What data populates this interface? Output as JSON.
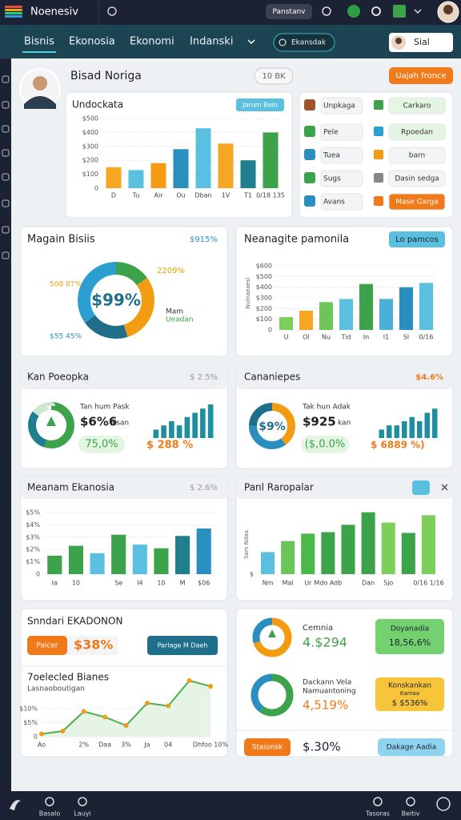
{
  "top_bar": {
    "title": "Noenesiv",
    "button": "Panstanv"
  },
  "nav": {
    "tabs": [
      "Bisnis",
      "Ekonosia",
      "Ekonomi",
      "Indanski"
    ],
    "search": "Ekansdak",
    "user": "Sial"
  },
  "header": {
    "name": "Bisad Noriga",
    "badge": "10 BK",
    "button": "Uajah fronce"
  },
  "card_undockata": {
    "title": "Undockata",
    "button": "Jarum Bain"
  },
  "menu": {
    "left": [
      "Unpkaga",
      "Pele",
      "Tuea",
      "Sugs",
      "Avans"
    ],
    "right": [
      "Carkaro",
      "Rpoedan",
      "barn",
      "Dasin sedga",
      "Mase Gxrga"
    ]
  },
  "card_magain": {
    "title": "Magain Bisiis",
    "stat": "$915%",
    "center": "$99%",
    "label_top": "2209%",
    "label_left": "508 87%",
    "label_bottom": "$55 45%",
    "legend_1": "Mam",
    "legend_2": "Ueadan"
  },
  "card_neanagite": {
    "title": "Neanagite pamonila",
    "button": "Lo pamcos",
    "axis_label": "Nulnaeaesi"
  },
  "card_kan": {
    "title": "Kan Poeopka",
    "stat": "$ 2.5%",
    "label": "Tan hum Pask",
    "value": "$6%6",
    "unit": "ksan",
    "pill": "75,0%",
    "change": "$ 288 %"
  },
  "card_can": {
    "title": "Cananiepes",
    "stat": "$4.6%",
    "center": "$9%",
    "label": "Tak hun Adak",
    "value": "$925",
    "unit": "kan",
    "pill": "($,0.0%",
    "change": "$ 6889 %)"
  },
  "card_meanam": {
    "title": "Meanam Ekanosia",
    "stat": "$ 2.6%"
  },
  "card_panl": {
    "title": "Panl Raropalar",
    "axis_label": "Sam Ndaa"
  },
  "card_snndari": {
    "title": "Snndari EKADONON",
    "pill": "Paicer",
    "value": "$38%",
    "button": "Parlage M Daeh",
    "subtitle": "7oelecled Bianes",
    "caption": "Lasnaoboutigan"
  },
  "card_cemnia": {
    "title": "Cemnia",
    "value": "4.$294",
    "box_title": "Doyanadia",
    "box_value": "18,56,6%",
    "title_2a": "Dackann Vela",
    "title_2b": "Namuantoning",
    "value_2": "4,519%",
    "box2_title": "Konskankan",
    "box2_sub": "Kamaa",
    "box2_value": "$ $536%",
    "pill": "Staionsk",
    "footer_value": "$.30%",
    "button": "Dakage Aadia"
  },
  "bottom_bar": {
    "items": [
      "Basalo",
      "Lauyi",
      "Tasoras",
      "Beitiv"
    ]
  },
  "chart_data": [
    {
      "type": "bar",
      "categories": [
        "D",
        "Tu",
        "Air",
        "Ou",
        "Dban",
        "1V",
        "T1",
        "0/18 135"
      ],
      "values": [
        150,
        130,
        180,
        280,
        430,
        320,
        200,
        400
      ],
      "colors": [
        "#f5a623",
        "#5bc0e0",
        "#f39c12",
        "#2a8fbf",
        "#5bc0e0",
        "#f5a623",
        "#1f7f8f",
        "#3ca34a"
      ],
      "ylim": [
        0,
        500
      ],
      "yticks": [
        0,
        {
          "value": 100,
          "label": "$100"
        },
        {
          "value": 200,
          "label": "$200"
        },
        {
          "value": 300,
          "label": "$300"
        },
        {
          "value": 400,
          "label": "$400"
        },
        {
          "value": 500,
          "label": "$500"
        }
      ]
    },
    {
      "type": "donut",
      "values": [
        15,
        30,
        20,
        35
      ],
      "colors": [
        "#3ca34a",
        "#f39c12",
        "#1f6f8b",
        "#2a9fd0"
      ]
    },
    {
      "type": "bar",
      "categories": [
        "U",
        "Ol",
        "Nu",
        "Tid",
        "In",
        "I1",
        "Sl",
        "0/16"
      ],
      "values": [
        120,
        180,
        260,
        290,
        430,
        290,
        400,
        440
      ],
      "colors": [
        "#7bcf5a",
        "#f5a623",
        "#6cc45a",
        "#5bc0e0",
        "#3ca34a",
        "#4bb0d8",
        "#2a8fbf",
        "#5bc0e0"
      ],
      "ylim": [
        0,
        600
      ],
      "yticks": [
        0,
        {
          "value": 100,
          "label": "$100"
        },
        {
          "value": 200,
          "label": "$200"
        },
        {
          "value": 300,
          "label": "$300"
        },
        {
          "value": 400,
          "label": "$400"
        },
        {
          "value": 500,
          "label": "$500"
        },
        {
          "value": 600,
          "label": "$600"
        }
      ]
    },
    {
      "type": "bar",
      "categories": [
        "Ia",
        "10",
        null,
        "Se",
        "I4",
        "10",
        "M",
        "$06"
      ],
      "values": [
        1.5,
        2.3,
        1.7,
        3.2,
        2.4,
        2.1,
        3.1,
        3.7
      ],
      "colors": [
        "#3ca34a",
        "#3ca34a",
        "#5bc0e0",
        "#3ca34a",
        "#5bc0e0",
        "#3ca34a",
        "#1f7f8f",
        "#2a8fbf"
      ],
      "ylim": [
        0,
        5
      ],
      "yticks": [
        0,
        {
          "value": 1,
          "label": "$1%"
        },
        {
          "value": 2,
          "label": "$2%"
        },
        {
          "value": 3,
          "label": "$3%"
        },
        {
          "value": 4,
          "label": "$4%"
        },
        {
          "value": 5,
          "label": "$5%"
        }
      ]
    },
    {
      "type": "bar",
      "categories": [
        "Nm",
        "Mal",
        "Ur",
        "Mdo Adb",
        null,
        "Dan",
        "Sjo",
        null,
        "0/16 1/16"
      ],
      "values": [
        30,
        45,
        55,
        57,
        67,
        84,
        70,
        56,
        80
      ],
      "colors": [
        "#5bc0e0",
        "#6cc45a",
        "#4cb84a",
        "#3ca34a",
        "#3ca34a",
        "#3ca34a",
        "#7bcf5a",
        "#3ca34a",
        "#7bcf5a"
      ],
      "ylim": [
        0,
        100
      ],
      "yticks": [
        {
          "value": 0,
          "label": "$"
        }
      ]
    },
    {
      "type": "line",
      "categories": [
        "Ao",
        null,
        "2%",
        "Daa",
        "3%",
        "Ja",
        "04",
        null,
        "Dhfoo 10%"
      ],
      "values": [
        1,
        2,
        9,
        7,
        4,
        12,
        11,
        20,
        18
      ],
      "color": "#4cae4c",
      "marker_color": "#f39c12",
      "ylim": [
        0,
        20
      ],
      "yticks": [
        0,
        {
          "value": 5,
          "label": "$5%"
        },
        {
          "value": 10,
          "label": "$10%"
        }
      ]
    },
    {
      "type": "donut",
      "values": [
        55,
        30,
        15
      ],
      "colors": [
        "#3ca34a",
        "#1f7f8f",
        "#cde8d0"
      ]
    },
    {
      "type": "bar",
      "values": [
        2,
        3,
        4,
        3,
        5,
        6,
        7,
        8
      ],
      "color": "#1f8fa0",
      "ylim": [
        0,
        8
      ]
    },
    {
      "type": "donut",
      "values": [
        40,
        35,
        25
      ],
      "colors": [
        "#f39c12",
        "#2a8fbf",
        "#1f6f8b"
      ]
    },
    {
      "type": "bar",
      "values": [
        2,
        3,
        3,
        4,
        5,
        4,
        6,
        7
      ],
      "color": "#1f8fa0",
      "ylim": [
        0,
        8
      ]
    },
    {
      "type": "donut",
      "values": [
        70,
        30
      ],
      "colors": [
        "#f39c12",
        "#2a8fbf"
      ]
    },
    {
      "type": "donut",
      "values": [
        60,
        40
      ],
      "colors": [
        "#3ca34a",
        "#2a8fbf"
      ]
    }
  ]
}
